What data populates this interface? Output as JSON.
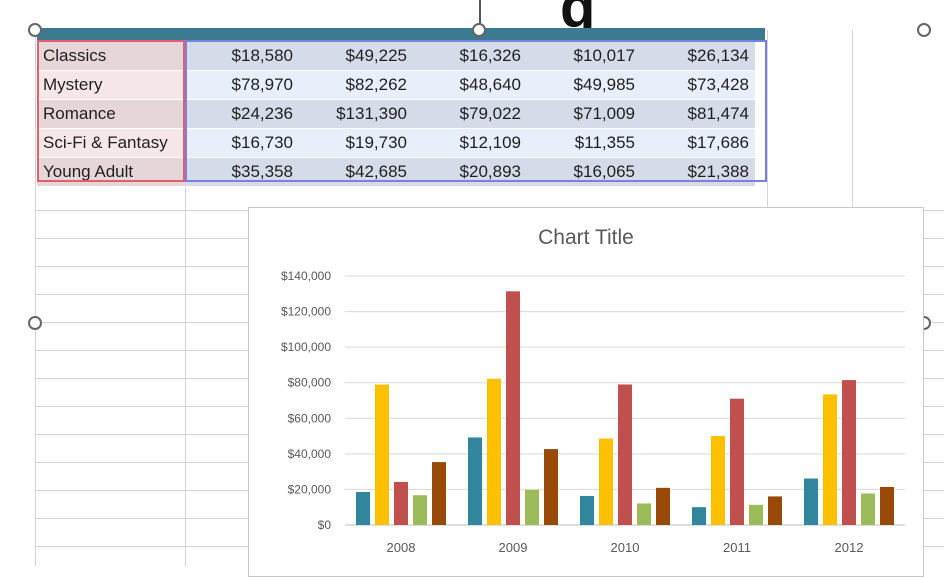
{
  "sheet": {
    "rows": [
      {
        "category": "Classics",
        "values": [
          "$18,580",
          "$49,225",
          "$16,326",
          "$10,017",
          "$26,134"
        ]
      },
      {
        "category": "Mystery",
        "values": [
          "$78,970",
          "$82,262",
          "$48,640",
          "$49,985",
          "$73,428"
        ]
      },
      {
        "category": "Romance",
        "values": [
          "$24,236",
          "$131,390",
          "$79,022",
          "$71,009",
          "$81,474"
        ]
      },
      {
        "category": "Sci-Fi & Fantasy",
        "values": [
          "$16,730",
          "$19,730",
          "$12,109",
          "$11,355",
          "$17,686"
        ]
      },
      {
        "category": "Young Adult",
        "values": [
          "$35,358",
          "$42,685",
          "$20,893",
          "$16,065",
          "$21,388"
        ]
      }
    ]
  },
  "chart_data": {
    "type": "bar",
    "title": "Chart Title",
    "categories": [
      "2008",
      "2009",
      "2010",
      "2011",
      "2012"
    ],
    "series": [
      {
        "values": [
          18580,
          49225,
          16326,
          10017,
          26134
        ],
        "color": "#31859c"
      },
      {
        "values": [
          78970,
          82262,
          48640,
          49985,
          73428
        ],
        "color": "#ffc000"
      },
      {
        "values": [
          24236,
          131390,
          79022,
          71009,
          81474
        ],
        "color": "#c0504d"
      },
      {
        "values": [
          16730,
          19730,
          12109,
          11355,
          17686
        ],
        "color": "#9bbb59"
      },
      {
        "values": [
          35358,
          42685,
          20893,
          16065,
          21388
        ],
        "color": "#984807"
      }
    ],
    "yticks": [
      "$0",
      "$20,000",
      "$40,000",
      "$60,000",
      "$80,000",
      "$100,000",
      "$120,000",
      "$140,000"
    ],
    "ylim": [
      0,
      140000
    ],
    "grid": true,
    "legend": "none"
  },
  "top_glyph": "g"
}
